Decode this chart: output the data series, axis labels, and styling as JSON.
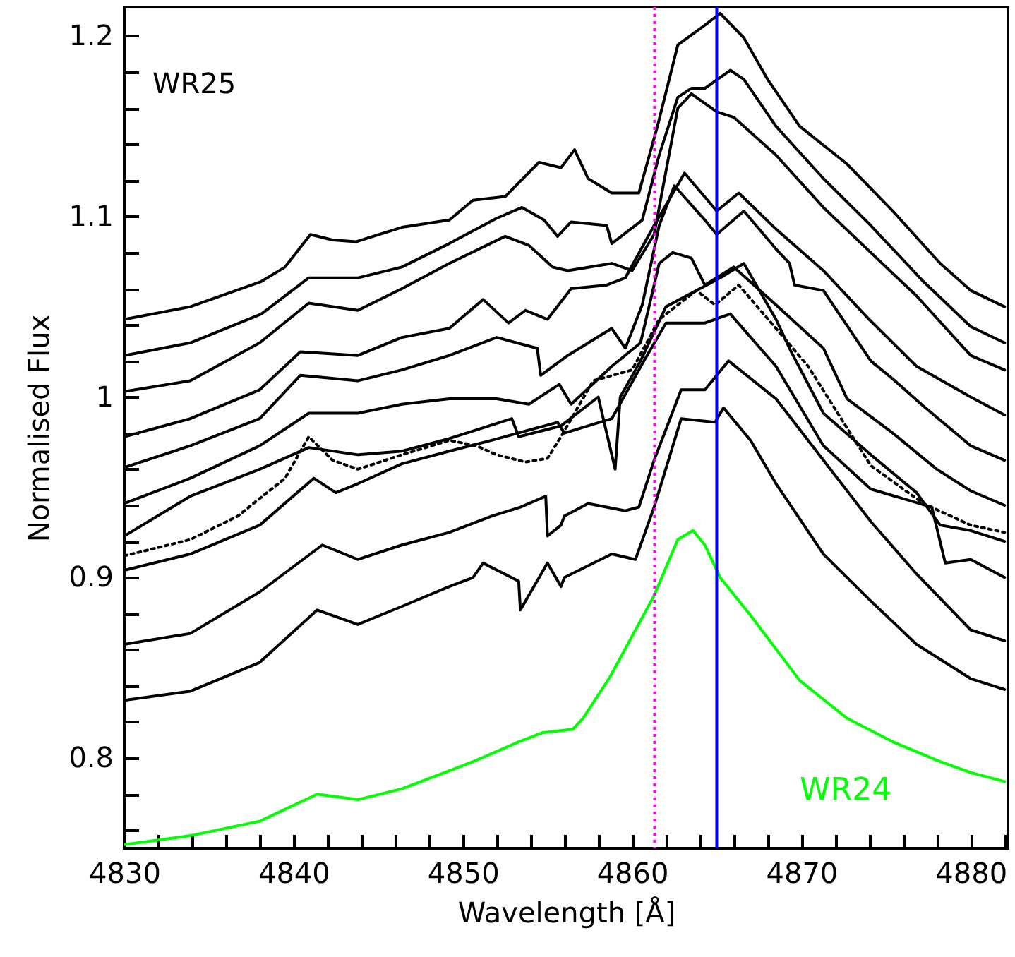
{
  "chart_data": {
    "type": "line",
    "xlabel": "Wavelength [Å]",
    "ylabel": "Normalised Flux",
    "annotations": [
      "WR25"
    ],
    "xlim": [
      4830,
      4882.2
    ],
    "ylim": [
      0.75,
      1.216
    ],
    "xticks": [
      4830,
      {
        "value": 4832,
        "label": null
      },
      {
        "value": 4834,
        "label": null
      },
      {
        "value": 4836,
        "label": null
      },
      {
        "value": 4838,
        "label": null
      },
      4840,
      {
        "value": 4842,
        "label": null
      },
      {
        "value": 4844,
        "label": null
      },
      {
        "value": 4846,
        "label": null
      },
      {
        "value": 4848,
        "label": null
      },
      4850,
      {
        "value": 4852,
        "label": null
      },
      {
        "value": 4854,
        "label": null
      },
      {
        "value": 4856,
        "label": null
      },
      {
        "value": 4858,
        "label": null
      },
      4860,
      {
        "value": 4862,
        "label": null
      },
      {
        "value": 4864,
        "label": null
      },
      {
        "value": 4866,
        "label": null
      },
      {
        "value": 4868,
        "label": null
      },
      4870,
      {
        "value": 4872,
        "label": null
      },
      {
        "value": 4874,
        "label": null
      },
      {
        "value": 4876,
        "label": null
      },
      {
        "value": 4878,
        "label": null
      },
      4880,
      {
        "value": 4882,
        "label": null
      }
    ],
    "yticks": [
      {
        "value": 0.76,
        "label": null
      },
      {
        "value": 0.78,
        "label": null
      },
      0.8,
      {
        "value": 0.82,
        "label": null
      },
      {
        "value": 0.84,
        "label": null
      },
      {
        "value": 0.86,
        "label": null
      },
      {
        "value": 0.88,
        "label": null
      },
      0.9,
      {
        "value": 0.92,
        "label": null
      },
      {
        "value": 0.94,
        "label": null
      },
      {
        "value": 0.96,
        "label": null
      },
      {
        "value": 0.98,
        "label": null
      },
      1,
      {
        "value": 1.02,
        "label": null
      },
      {
        "value": 1.04,
        "label": null
      },
      {
        "value": 1.06,
        "label": null
      },
      {
        "value": 1.08,
        "label": null
      },
      1.1,
      {
        "value": 1.12,
        "label": null
      },
      {
        "value": 1.14,
        "label": null
      },
      {
        "value": 1.16,
        "label": null
      },
      {
        "value": 1.18,
        "label": null
      },
      1.2
    ],
    "grid": false,
    "marker": "none",
    "ref_lines": [
      {
        "axis": "x",
        "value": 4861.33,
        "color": "#ff00ff",
        "line_style": "dotted"
      },
      {
        "axis": "x",
        "value": 4865,
        "color": "#0000ff",
        "line_style": "solid"
      }
    ],
    "series": [
      {
        "color": "#000000",
        "line_style": "solid",
        "x": [
          4830,
          4833.9,
          4838.1,
          4839.5,
          4841,
          4842.3,
          4843.7,
          4846.4,
          4849.2,
          4850.6,
          4852.5,
          4854.5,
          4855.8,
          4856.6,
          4857.4,
          4858.8,
          4860.4,
          4861.5,
          4862.7,
          4864.3,
          4865.2,
          4866.6,
          4868,
          4869.9,
          4872.7,
          4875.4,
          4878.2,
          4880,
          4882
        ],
        "values": [
          1.043,
          1.05,
          1.064,
          1.072,
          1.09,
          1.087,
          1.086,
          1.094,
          1.098,
          1.109,
          1.111,
          1.13,
          1.127,
          1.137,
          1.121,
          1.113,
          1.113,
          1.15,
          1.195,
          1.206,
          1.2125,
          1.199,
          1.176,
          1.15,
          1.129,
          1.103,
          1.074,
          1.059,
          1.05
        ]
      },
      {
        "color": "#000000",
        "line_style": "solid",
        "x": [
          4830,
          4833.9,
          4838.1,
          4840.9,
          4843.8,
          4846.4,
          4849.2,
          4852,
          4853.5,
          4854.8,
          4855.6,
          4856.4,
          4858.5,
          4858.8,
          4860.6,
          4861.6,
          4862.7,
          4863.5,
          4864.3,
          4865.8,
          4866.6,
          4868.5,
          4871.3,
          4874.1,
          4877.2,
          4880,
          4882
        ],
        "values": [
          1.023,
          1.03,
          1.046,
          1.066,
          1.066,
          1.072,
          1.085,
          1.099,
          1.105,
          1.098,
          1.089,
          1.097,
          1.095,
          1.085,
          1.098,
          1.134,
          1.166,
          1.171,
          1.171,
          1.181,
          1.176,
          1.15,
          1.121,
          1.095,
          1.064,
          1.039,
          1.03
        ]
      },
      {
        "color": "#000000",
        "line_style": "solid",
        "x": [
          4830,
          4833.9,
          4838,
          4840.9,
          4843.8,
          4846.4,
          4849.2,
          4852.5,
          4853.9,
          4855.3,
          4856.2,
          4858.8,
          4860,
          4861.3,
          4862.7,
          4863.5,
          4865,
          4866,
          4868.5,
          4871.3,
          4874.1,
          4876.8,
          4880,
          4882
        ],
        "values": [
          1.003,
          1.009,
          1.03,
          1.052,
          1.048,
          1.06,
          1.074,
          1.089,
          1.084,
          1.072,
          1.07,
          1.074,
          1.07,
          1.09,
          1.16,
          1.168,
          1.158,
          1.155,
          1.134,
          1.105,
          1.08,
          1.056,
          1.023,
          1.015
        ]
      },
      {
        "color": "#000000",
        "line_style": "solid",
        "x": [
          4830,
          4833.9,
          4838,
          4840.4,
          4843.8,
          4846.4,
          4849.2,
          4851.2,
          4852.7,
          4853.7,
          4855,
          4856.4,
          4858.5,
          4859.6,
          4861.3,
          4863.1,
          4865,
          4866.3,
          4868.5,
          4871.3,
          4874,
          4876.8,
          4880,
          4882
        ],
        "values": [
          0.978,
          0.988,
          1.004,
          1.025,
          1.023,
          1.033,
          1.038,
          1.054,
          1.041,
          1.048,
          1.043,
          1.06,
          1.062,
          1.066,
          1.095,
          1.124,
          1.103,
          1.113,
          1.093,
          1.07,
          1.043,
          1.017,
          1.0,
          0.99
        ]
      },
      {
        "color": "#000000",
        "line_style": "solid",
        "x": [
          4830,
          4833.9,
          4838,
          4840.4,
          4843.8,
          4846.4,
          4849.2,
          4852,
          4854.4,
          4854.6,
          4856.2,
          4858.8,
          4859.6,
          4860.6,
          4861.6,
          4862.5,
          4864.3,
          4865,
          4866.6,
          4868.5,
          4869.3,
          4869.6,
          4871.3,
          4874.1,
          4875.4,
          4877.2,
          4880,
          4882
        ],
        "values": [
          0.961,
          0.973,
          0.988,
          1.012,
          1.009,
          1.015,
          1.023,
          1.033,
          1.027,
          1.012,
          1.023,
          1.038,
          1.027,
          1.051,
          1.095,
          1.117,
          1.098,
          1.09,
          1.103,
          1.082,
          1.074,
          1.062,
          1.059,
          1.02,
          1.01,
          0.995,
          0.973,
          0.965
        ]
      },
      {
        "color": "#000000",
        "line_style": "solid",
        "x": [
          4830,
          4833.9,
          4838,
          4840.9,
          4843.8,
          4846.4,
          4849.2,
          4852,
          4853.9,
          4855.7,
          4856.4,
          4858.8,
          4860.5,
          4861.6,
          4862.4,
          4863.5,
          4864.3,
          4866,
          4868.5,
          4871.3,
          4872.7,
          4875.4,
          4878,
          4880,
          4882
        ],
        "values": [
          0.941,
          0.955,
          0.973,
          0.991,
          0.991,
          0.996,
          0.999,
          0.999,
          0.996,
          1.007,
          0.996,
          1.017,
          1.03,
          1.074,
          1.08,
          1.077,
          1.062,
          1.072,
          1.051,
          1.027,
          0.999,
          0.98,
          0.96,
          0.948,
          0.94
        ]
      },
      {
        "color": "#000000",
        "line_style": "solid",
        "x": [
          4830,
          4833.9,
          4838,
          4840.9,
          4843.8,
          4846.4,
          4849.2,
          4852.9,
          4853.3,
          4855.8,
          4858,
          4859,
          4859.3,
          4860.5,
          4862,
          4865.2,
          4866.6,
          4868.5,
          4869.4,
          4871.3,
          4874.1,
          4876.8,
          4878.2,
          4880,
          4882
        ],
        "values": [
          0.923,
          0.945,
          0.96,
          0.972,
          0.968,
          0.97,
          0.977,
          0.988,
          0.978,
          0.984,
          1.0,
          0.96,
          1.0,
          1.02,
          1.05,
          1.066,
          1.074,
          1.043,
          1.025,
          0.991,
          0.968,
          0.947,
          0.929,
          0.926,
          0.92
        ]
      },
      {
        "color": "#000000",
        "line_style": "dotted",
        "x": [
          4830,
          4833.9,
          4836.7,
          4839.5,
          4840.9,
          4842.3,
          4843.8,
          4846.4,
          4849.2,
          4850.8,
          4852,
          4853.7,
          4855,
          4855.8,
          4857.7,
          4860,
          4861.6,
          4863.8,
          4864.9,
          4866.3,
          4868.5,
          4870.4,
          4874.1,
          4877.2,
          4880,
          4882
        ],
        "values": [
          0.912,
          0.921,
          0.934,
          0.955,
          0.978,
          0.965,
          0.96,
          0.968,
          0.976,
          0.973,
          0.968,
          0.964,
          0.966,
          0.978,
          1.009,
          1.015,
          1.043,
          1.059,
          1.051,
          1.062,
          1.038,
          1.017,
          0.962,
          0.941,
          0.929,
          0.925
        ]
      },
      {
        "color": "#000000",
        "line_style": "solid",
        "x": [
          4830,
          4833.9,
          4838,
          4841.2,
          4842.5,
          4843.8,
          4846.4,
          4849.2,
          4851.7,
          4855.6,
          4856,
          4858.8,
          4860.7,
          4862,
          4864.3,
          4865.8,
          4868.5,
          4871.3,
          4874.1,
          4877.7,
          4878.5,
          4880,
          4882
        ],
        "values": [
          0.904,
          0.913,
          0.929,
          0.955,
          0.947,
          0.952,
          0.963,
          0.97,
          0.976,
          0.986,
          0.98,
          0.988,
          1.02,
          1.041,
          1.041,
          1.046,
          1.017,
          0.973,
          0.949,
          0.939,
          0.908,
          0.91,
          0.9
        ]
      },
      {
        "color": "#000000",
        "line_style": "solid",
        "x": [
          4830,
          4833.9,
          4838,
          4841.7,
          4843.8,
          4846.4,
          4849.2,
          4851.7,
          4853.4,
          4854.9,
          4855,
          4855.8,
          4856,
          4857.4,
          4859.6,
          4860.4,
          4861.3,
          4862.9,
          4864.3,
          4865.7,
          4868.5,
          4871.3,
          4874.1,
          4876.8,
          4880,
          4882
        ],
        "values": [
          0.863,
          0.869,
          0.892,
          0.918,
          0.91,
          0.918,
          0.925,
          0.934,
          0.939,
          0.945,
          0.923,
          0.929,
          0.934,
          0.941,
          0.937,
          0.939,
          0.965,
          1.004,
          1.004,
          1.02,
          0.999,
          0.965,
          0.931,
          0.902,
          0.871,
          0.865
        ]
      },
      {
        "color": "#000000",
        "line_style": "solid",
        "x": [
          4830,
          4833.9,
          4838,
          4841.4,
          4843.8,
          4846.4,
          4849.2,
          4850.6,
          4851.2,
          4853.3,
          4853.4,
          4855,
          4855.8,
          4856,
          4858.8,
          4860.2,
          4861.3,
          4862.9,
          4864.9,
          4865.4,
          4867,
          4868.5,
          4871.3,
          4874.1,
          4876.8,
          4880,
          4882
        ],
        "values": [
          0.832,
          0.837,
          0.853,
          0.882,
          0.874,
          0.884,
          0.895,
          0.9,
          0.908,
          0.898,
          0.882,
          0.908,
          0.895,
          0.9,
          0.913,
          0.91,
          0.939,
          0.988,
          0.986,
          0.994,
          0.976,
          0.952,
          0.913,
          0.887,
          0.863,
          0.844,
          0.838
        ]
      },
      {
        "name": "WR24",
        "color": "#00ff00",
        "line_style": "solid",
        "x": [
          4830,
          4833.9,
          4838,
          4841.4,
          4843.8,
          4846.4,
          4849.2,
          4850.6,
          4853.3,
          4854.7,
          4856.5,
          4857.1,
          4858.7,
          4861.3,
          4862.7,
          4863.6,
          4864.3,
          4865.2,
          4867,
          4869.9,
          4872.7,
          4875.4,
          4878.2,
          4880,
          4882
        ],
        "values": [
          0.752,
          0.757,
          0.765,
          0.78,
          0.777,
          0.783,
          0.793,
          0.798,
          0.809,
          0.814,
          0.816,
          0.822,
          0.845,
          0.89,
          0.921,
          0.926,
          0.918,
          0.9,
          0.879,
          0.843,
          0.822,
          0.809,
          0.798,
          0.792,
          0.787
        ]
      }
    ]
  }
}
